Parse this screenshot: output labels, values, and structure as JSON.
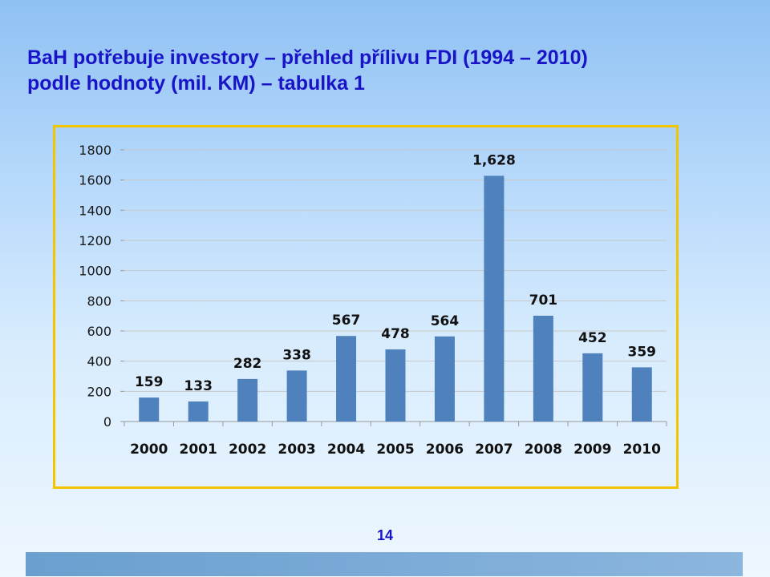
{
  "slide": {
    "title": "BaH potřebuje investory – přehled přílivu FDI (1994 – 2010) podle hodnoty (mil. KM) – tabulka 1",
    "page_number": "14"
  },
  "colors": {
    "title": "#1a14c8",
    "bar": "#4f81bd",
    "frame": "#f2c500",
    "grid": "#c8c8c8"
  },
  "chart_data": {
    "type": "bar",
    "categories": [
      "2000",
      "2001",
      "2002",
      "2003",
      "2004",
      "2005",
      "2006",
      "2007",
      "2008",
      "2009",
      "2010"
    ],
    "values": [
      159,
      133,
      282,
      338,
      567,
      478,
      564,
      1628,
      701,
      452,
      359
    ],
    "data_labels": [
      "159",
      "133",
      "282",
      "338",
      "567",
      "478",
      "564",
      "1,628",
      "701",
      "452",
      "359"
    ],
    "yticks": [
      0,
      200,
      400,
      600,
      800,
      1000,
      1200,
      1400,
      1600,
      1800
    ],
    "ylim": [
      0,
      1800
    ],
    "grid": true,
    "legend": "none"
  }
}
